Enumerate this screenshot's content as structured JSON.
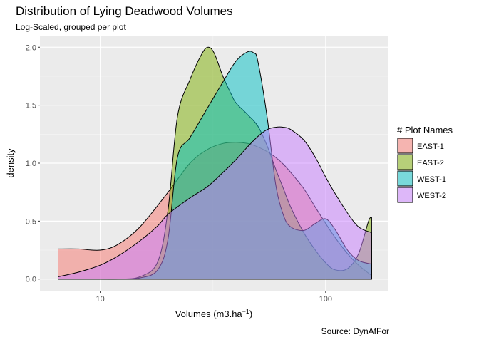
{
  "chart_data": {
    "type": "area",
    "title": "Distribution of Lying Deadwood Volumes",
    "subtitle": "Log-Scaled, grouped per plot",
    "caption": "Source: DynAfFor",
    "xlabel": "Volumes (m3.ha",
    "xlabel_sup": "−1",
    "xlabel_suffix": ")",
    "ylabel": "density",
    "x_scale": "log10",
    "xlim": [
      5.4,
      190
    ],
    "ylim": [
      -0.1,
      2.1
    ],
    "x_ticks": [
      10,
      100
    ],
    "x_tick_labels": [
      "10",
      "100"
    ],
    "y_ticks": [
      0,
      0.5,
      1,
      1.5,
      2
    ],
    "y_tick_labels": [
      "0.0",
      "0.5",
      "1.0",
      "1.5",
      "2.0"
    ],
    "grid": true,
    "legend_title": "# Plot Names",
    "legend_position": "right",
    "series": [
      {
        "name": "EAST-1",
        "color": "#F8766D",
        "x": [
          6.5,
          8,
          10,
          12,
          15,
          20,
          25,
          30,
          35,
          40,
          45,
          50,
          55,
          60,
          65,
          70,
          80,
          90,
          100,
          110,
          125,
          140,
          160
        ],
        "y": [
          0.26,
          0.26,
          0.25,
          0.3,
          0.45,
          0.75,
          1.0,
          1.12,
          1.17,
          1.18,
          1.17,
          1.14,
          1.1,
          1.05,
          0.99,
          0.92,
          0.78,
          0.62,
          0.48,
          0.36,
          0.22,
          0.12,
          0.03
        ]
      },
      {
        "name": "EAST-2",
        "color": "#7CAE00",
        "x": [
          6.5,
          8,
          10,
          12,
          15,
          18,
          20,
          22,
          25,
          28,
          30,
          32,
          35,
          38,
          40,
          45,
          50,
          55,
          60,
          65,
          70,
          80,
          90,
          100,
          110,
          125,
          140,
          155,
          160
        ],
        "y": [
          0.0,
          0.0,
          0.0,
          0.0,
          0.02,
          0.15,
          0.6,
          1.4,
          1.72,
          1.93,
          2.0,
          1.95,
          1.75,
          1.6,
          1.52,
          1.42,
          1.32,
          1.15,
          0.95,
          0.78,
          0.62,
          0.4,
          0.25,
          0.14,
          0.08,
          0.09,
          0.22,
          0.5,
          0.53
        ]
      },
      {
        "name": "WEST-1",
        "color": "#00BFC4",
        "x": [
          6.5,
          8,
          10,
          12,
          15,
          18,
          20,
          22,
          25,
          30,
          35,
          40,
          45,
          48,
          50,
          55,
          60,
          65,
          70,
          80,
          90,
          100,
          110,
          125,
          140,
          160
        ],
        "y": [
          0.0,
          0.0,
          0.0,
          0.0,
          0.01,
          0.08,
          0.35,
          1.05,
          1.22,
          1.48,
          1.7,
          1.88,
          1.96,
          1.95,
          1.88,
          1.4,
          0.82,
          0.55,
          0.45,
          0.42,
          0.48,
          0.52,
          0.43,
          0.25,
          0.16,
          0.13
        ]
      },
      {
        "name": "WEST-2",
        "color": "#C77CFF",
        "x": [
          6.5,
          8,
          10,
          12,
          15,
          18,
          20,
          25,
          30,
          35,
          40,
          45,
          50,
          55,
          60,
          65,
          70,
          80,
          90,
          100,
          110,
          125,
          140,
          160
        ],
        "y": [
          0.02,
          0.06,
          0.12,
          0.2,
          0.33,
          0.46,
          0.56,
          0.7,
          0.8,
          0.92,
          1.03,
          1.14,
          1.23,
          1.29,
          1.31,
          1.31,
          1.29,
          1.2,
          1.05,
          0.88,
          0.74,
          0.57,
          0.45,
          0.4
        ]
      }
    ]
  }
}
